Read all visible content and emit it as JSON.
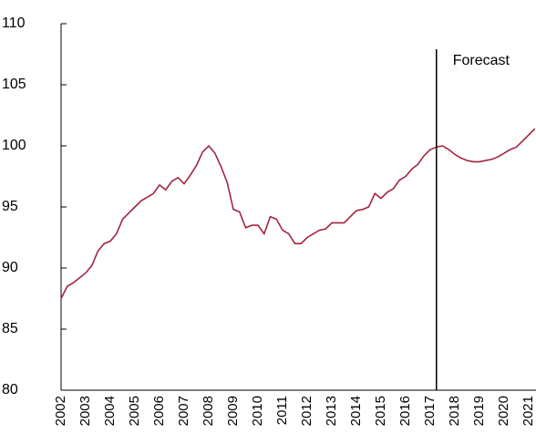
{
  "chart_data": {
    "type": "line",
    "categories": [
      "2002",
      null,
      null,
      null,
      "2003",
      null,
      null,
      null,
      "2004",
      null,
      null,
      null,
      "2005",
      null,
      null,
      null,
      "2006",
      null,
      null,
      null,
      "2007",
      null,
      null,
      null,
      "2008",
      null,
      null,
      null,
      "2009",
      null,
      null,
      null,
      "2010",
      null,
      null,
      null,
      "2011",
      null,
      null,
      null,
      "2012",
      null,
      null,
      null,
      "2013",
      null,
      null,
      null,
      "2014",
      null,
      null,
      null,
      "2015",
      null,
      null,
      null,
      "2016",
      null,
      null,
      null,
      "2017",
      null,
      null,
      null,
      "2018",
      null,
      null,
      null,
      "2019",
      null,
      null,
      null,
      "2020",
      null,
      null,
      null,
      "2021",
      null
    ],
    "series": [
      {
        "color": "#a3243f",
        "values": [
          87.5,
          88.5,
          88.8,
          89.2,
          89.6,
          90.2,
          91.4,
          92.0,
          92.2,
          92.8,
          94.0,
          94.5,
          95.0,
          95.5,
          95.8,
          96.1,
          96.8,
          96.4,
          97.1,
          97.4,
          96.9,
          97.6,
          98.4,
          99.5,
          100.0,
          99.4,
          98.3,
          97.0,
          94.8,
          94.6,
          93.3,
          93.5,
          93.5,
          92.8,
          94.2,
          94.0,
          93.1,
          92.8,
          92.0,
          92.0,
          92.5,
          92.8,
          93.1,
          93.2,
          93.7,
          93.7,
          93.7,
          94.2,
          94.7,
          94.8,
          95.0,
          96.1,
          95.7,
          96.2,
          96.5,
          97.2,
          97.5,
          98.1,
          98.5,
          99.2,
          99.7,
          99.9,
          100.0,
          99.7,
          99.3,
          99.0,
          98.8,
          98.7,
          98.7,
          98.8,
          98.9,
          99.1,
          99.4,
          99.7,
          99.9,
          100.4,
          100.9,
          101.4
        ]
      }
    ],
    "ylim": [
      80,
      110
    ],
    "yticks": [
      80,
      85,
      90,
      95,
      100,
      105,
      110
    ],
    "forecast": {
      "label": "Forecast",
      "from": 61
    }
  }
}
